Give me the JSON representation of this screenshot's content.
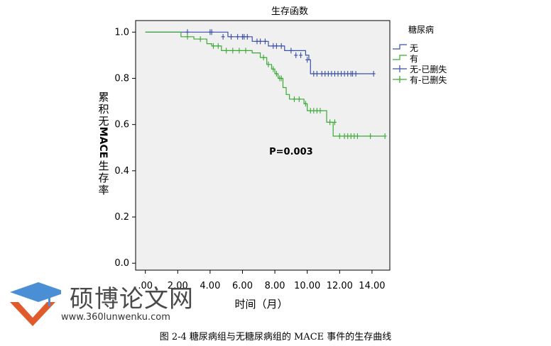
{
  "chart_data": {
    "type": "line",
    "title": "生存函数",
    "xlabel": "时间（月）",
    "ylabel": "累积无MACE生存率",
    "x_ticks": [
      ".00",
      "2.00",
      "4.00",
      "6.00",
      "8.00",
      "10.00",
      "12.00",
      "14.00"
    ],
    "x_tick_values": [
      0,
      2,
      4,
      6,
      8,
      10,
      12,
      14
    ],
    "xlim": [
      -0.6,
      15.1
    ],
    "y_ticks": [
      "0.0",
      "0.2",
      "0.4",
      "0.6",
      "0.8",
      "1.0"
    ],
    "y_tick_values": [
      0.0,
      0.2,
      0.4,
      0.6,
      0.8,
      1.0
    ],
    "ylim": [
      -0.03,
      1.05
    ],
    "grid": false,
    "legend_title": "糖尿病",
    "legend_position": "right",
    "legend_entries": [
      "无",
      "有",
      "无-已删失",
      "有-已删失"
    ],
    "annotation": "P=0.003",
    "annotation_pos": {
      "x": 9.0,
      "y": 0.47
    },
    "colors": {
      "无": "#3b4fa8",
      "有": "#3aaa35",
      "plot_bg": "#f0f0f0"
    },
    "series": [
      {
        "name": "无",
        "steps": [
          [
            0,
            1.0
          ],
          [
            5.1,
            0.98
          ],
          [
            6.6,
            0.96
          ],
          [
            7.6,
            0.94
          ],
          [
            8.6,
            0.92
          ],
          [
            9.9,
            0.9
          ],
          [
            10.1,
            0.88
          ],
          [
            10.2,
            0.82
          ],
          [
            14.1,
            0.82
          ]
        ],
        "censored": [
          [
            2.6,
            1.0
          ],
          [
            4.0,
            1.0
          ],
          [
            4.1,
            1.0
          ],
          [
            4.8,
            0.98
          ],
          [
            5.3,
            0.98
          ],
          [
            5.7,
            0.98
          ],
          [
            6.0,
            0.98
          ],
          [
            6.1,
            0.98
          ],
          [
            6.3,
            0.98
          ],
          [
            6.9,
            0.96
          ],
          [
            7.1,
            0.96
          ],
          [
            7.4,
            0.96
          ],
          [
            7.9,
            0.94
          ],
          [
            8.1,
            0.94
          ],
          [
            8.4,
            0.94
          ],
          [
            9.0,
            0.92
          ],
          [
            9.3,
            0.9
          ],
          [
            9.6,
            0.9
          ],
          [
            10.0,
            0.88
          ],
          [
            10.4,
            0.82
          ],
          [
            10.6,
            0.82
          ],
          [
            10.9,
            0.82
          ],
          [
            11.1,
            0.82
          ],
          [
            11.3,
            0.82
          ],
          [
            11.5,
            0.82
          ],
          [
            11.7,
            0.82
          ],
          [
            11.9,
            0.82
          ],
          [
            12.1,
            0.82
          ],
          [
            12.3,
            0.82
          ],
          [
            12.5,
            0.82
          ],
          [
            12.7,
            0.82
          ],
          [
            12.8,
            0.82
          ],
          [
            13.0,
            0.82
          ],
          [
            14.1,
            0.82
          ]
        ]
      },
      {
        "name": "有",
        "steps": [
          [
            0,
            1.0
          ],
          [
            2.2,
            0.98
          ],
          [
            3.0,
            0.97
          ],
          [
            3.8,
            0.95
          ],
          [
            4.1,
            0.94
          ],
          [
            4.7,
            0.92
          ],
          [
            6.6,
            0.91
          ],
          [
            7.1,
            0.89
          ],
          [
            7.5,
            0.86
          ],
          [
            7.8,
            0.84
          ],
          [
            8.0,
            0.82
          ],
          [
            8.2,
            0.8
          ],
          [
            8.5,
            0.76
          ],
          [
            8.7,
            0.73
          ],
          [
            8.9,
            0.71
          ],
          [
            9.8,
            0.69
          ],
          [
            10.0,
            0.66
          ],
          [
            11.2,
            0.61
          ],
          [
            11.6,
            0.55
          ],
          [
            14.8,
            0.55
          ]
        ],
        "censored": [
          [
            2.6,
            0.98
          ],
          [
            3.4,
            0.97
          ],
          [
            4.2,
            0.94
          ],
          [
            4.5,
            0.94
          ],
          [
            5.0,
            0.92
          ],
          [
            5.4,
            0.92
          ],
          [
            5.8,
            0.92
          ],
          [
            6.2,
            0.92
          ],
          [
            7.3,
            0.89
          ],
          [
            7.6,
            0.86
          ],
          [
            7.9,
            0.84
          ],
          [
            8.1,
            0.82
          ],
          [
            8.3,
            0.8
          ],
          [
            8.4,
            0.8
          ],
          [
            9.2,
            0.71
          ],
          [
            9.5,
            0.71
          ],
          [
            9.9,
            0.69
          ],
          [
            10.2,
            0.66
          ],
          [
            10.4,
            0.66
          ],
          [
            10.6,
            0.66
          ],
          [
            10.8,
            0.66
          ],
          [
            11.4,
            0.61
          ],
          [
            11.7,
            0.61
          ],
          [
            12.0,
            0.55
          ],
          [
            12.3,
            0.55
          ],
          [
            12.5,
            0.55
          ],
          [
            12.7,
            0.55
          ],
          [
            12.9,
            0.55
          ],
          [
            13.1,
            0.55
          ],
          [
            13.9,
            0.55
          ],
          [
            14.8,
            0.55
          ]
        ]
      }
    ]
  },
  "watermark": {
    "title": "硕博论文网",
    "url": "www.360lunwenku.com"
  },
  "caption": "图 2-4  糖尿病组与无糖尿病组的 MACE 事件的生存曲线"
}
